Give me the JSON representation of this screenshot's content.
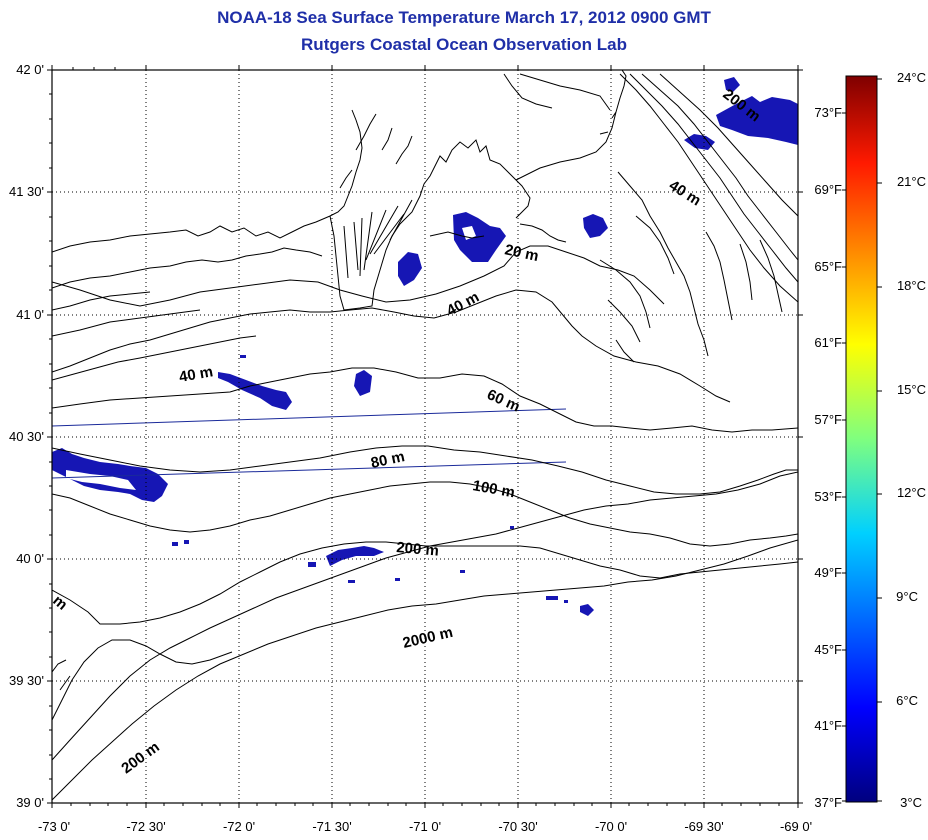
{
  "title": "NOAA-18 Sea Surface Temperature March 17, 2012 0900 GMT",
  "subtitle": "Rutgers Coastal Ocean Observation Lab",
  "axes": {
    "lon_ticks": [
      "-73 0'",
      "-72 30'",
      "-72 0'",
      "-71 30'",
      "-71 0'",
      "-70 30'",
      "-70 0'",
      "-69 30'",
      "-69 0'"
    ],
    "lat_ticks": [
      "42 0'",
      "41 30'",
      "41 0'",
      "40 30'",
      "40 0'",
      "39 30'",
      "39 0'"
    ]
  },
  "contour_labels": {
    "c200_ne": "200 m",
    "c40_ne": "40 m",
    "c20": "20 m",
    "c40_mid": "40 m",
    "c40_w": "40 m",
    "c60": "60 m",
    "c80": "80 m",
    "c100": "100 m",
    "c200_mid": "200 m",
    "c2000": "2000 m",
    "c200_sw": "200 m",
    "edge_m": "m"
  },
  "colorbar": {
    "celsius": [
      "24°C",
      "21°C",
      "18°C",
      "15°C",
      "12°C",
      "9°C",
      "6°C",
      "3°C"
    ],
    "fahrenheit": [
      "73°F",
      "69°F",
      "65°F",
      "61°F",
      "57°F",
      "53°F",
      "49°F",
      "45°F",
      "41°F",
      "37°F"
    ]
  },
  "colors": {
    "title": "#1f2fa8",
    "sst_cold": "#1616b4",
    "sst_cold_dark": "#0a0a8c",
    "track": "#1a2a9a"
  }
}
